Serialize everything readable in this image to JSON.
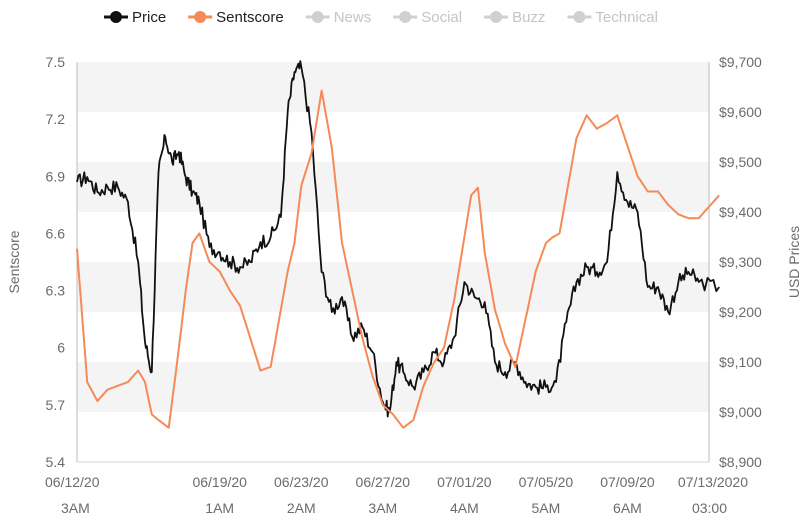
{
  "legend": [
    {
      "label": "Price",
      "color": "#111111",
      "active": true
    },
    {
      "label": "Sentscore",
      "color": "#f58a57",
      "active": true
    },
    {
      "label": "News",
      "color": "#d0d0d0",
      "active": false
    },
    {
      "label": "Social",
      "color": "#d0d0d0",
      "active": false
    },
    {
      "label": "Buzz",
      "color": "#d0d0d0",
      "active": false
    },
    {
      "label": "Technical",
      "color": "#d0d0d0",
      "active": false
    }
  ],
  "chart_data": {
    "type": "line",
    "grid": "alternating horizontal bands",
    "legend_position": "top",
    "left_axis": {
      "label": "Sentscore",
      "range": [
        5.4,
        7.5
      ],
      "ticks": [
        "7.5",
        "7.2",
        "6.9",
        "6.6",
        "6.3",
        "6",
        "5.7",
        "5.4"
      ]
    },
    "right_axis": {
      "label": "USD Prices",
      "range": [
        8900,
        9700
      ],
      "ticks": [
        "$9,700",
        "$9,600",
        "$9,500",
        "$9,400",
        "$9,300",
        "$9,200",
        "$9,100",
        "$9,000",
        "$8,900"
      ]
    },
    "x_axis": {
      "range": [
        "06/12/20",
        "07/13/20"
      ],
      "ticks": [
        {
          "date": "06/12/20",
          "time": "3AM"
        },
        {
          "date": "06/19/20",
          "time": "1AM"
        },
        {
          "date": "06/23/20",
          "time": "2AM"
        },
        {
          "date": "06/27/20",
          "time": "3AM"
        },
        {
          "date": "07/01/20",
          "time": "4AM"
        },
        {
          "date": "07/05/20",
          "time": "5AM"
        },
        {
          "date": "07/09/20",
          "time": "6AM"
        },
        {
          "date": "07/13/2020",
          "time": "03:00"
        }
      ]
    },
    "series": [
      {
        "name": "Price",
        "axis": "right",
        "color": "#111111",
        "x": [
          "06/12/20",
          "06/12/20",
          "06/13/20",
          "06/13/20",
          "06/14/20",
          "06/14/20",
          "06/15/20",
          "06/15/20",
          "06/15/20",
          "06/16/20",
          "06/16/20",
          "06/16/20",
          "06/17/20",
          "06/17/20",
          "06/17/20",
          "06/18/20",
          "06/18/20",
          "06/19/20",
          "06/19/20",
          "06/20/20",
          "06/20/20",
          "06/21/20",
          "06/21/20",
          "06/22/20",
          "06/22/20",
          "06/22/20",
          "06/23/20",
          "06/23/20",
          "06/24/20",
          "06/24/20",
          "06/25/20",
          "06/25/20",
          "06/26/20",
          "06/26/20",
          "06/27/20",
          "06/27/20",
          "06/27/20",
          "06/28/20",
          "06/28/20",
          "06/29/20",
          "06/29/20",
          "06/30/20",
          "06/30/20",
          "07/01/20",
          "07/01/20",
          "07/02/20",
          "07/02/20",
          "07/03/20",
          "07/03/20",
          "07/04/20",
          "07/04/20",
          "07/05/20",
          "07/05/20",
          "07/06/20",
          "07/06/20",
          "07/07/20",
          "07/07/20",
          "07/08/20",
          "07/08/20",
          "07/09/20",
          "07/09/20",
          "07/10/20",
          "07/10/20",
          "07/11/20",
          "07/11/20",
          "07/12/20",
          "07/12/20",
          "07/13/20"
        ],
        "y": [
          9460,
          9470,
          9440,
          9450,
          9450,
          9420,
          9300,
          9140,
          9080,
          9480,
          9550,
          9500,
          9520,
          9470,
          9440,
          9420,
          9330,
          9320,
          9300,
          9290,
          9300,
          9340,
          9350,
          9390,
          9600,
          9680,
          9690,
          9560,
          9280,
          9200,
          9230,
          9150,
          9170,
          9120,
          9020,
          9000,
          9100,
          9080,
          9050,
          9080,
          9120,
          9100,
          9150,
          9260,
          9230,
          9220,
          9100,
          9080,
          9100,
          9060,
          9050,
          9050,
          9060,
          9180,
          9260,
          9290,
          9280,
          9300,
          9480,
          9420,
          9400,
          9250,
          9250,
          9200,
          9260,
          9280,
          9260,
          9250
        ]
      },
      {
        "name": "Sentscore",
        "axis": "left",
        "color": "#f58a57",
        "x": [
          "06/12/20",
          "06/12/20",
          "06/13/20",
          "06/13/20",
          "06/14/20",
          "06/14/20",
          "06/15/20",
          "06/15/20",
          "06/15/20",
          "06/16/20",
          "06/16/20",
          "06/17/20",
          "06/17/20",
          "06/17/20",
          "06/18/20",
          "06/18/20",
          "06/19/20",
          "06/19/20",
          "06/20/20",
          "06/20/20",
          "06/21/20",
          "06/21/20",
          "06/22/20",
          "06/22/20",
          "06/22/20",
          "06/23/20",
          "06/23/20",
          "06/24/20",
          "06/24/20",
          "06/25/20",
          "06/25/20",
          "06/26/20",
          "06/26/20",
          "06/27/20",
          "06/27/20",
          "06/28/20",
          "06/28/20",
          "06/29/20",
          "06/29/20",
          "06/30/20",
          "06/30/20",
          "07/01/20",
          "07/01/20",
          "07/01/20",
          "07/02/20",
          "07/02/20",
          "07/03/20",
          "07/03/20",
          "07/04/20",
          "07/04/20",
          "07/05/20",
          "07/05/20",
          "07/05/20",
          "07/06/20",
          "07/06/20",
          "07/07/20",
          "07/07/20",
          "07/08/20",
          "07/08/20",
          "07/09/20",
          "07/09/20",
          "07/10/20",
          "07/10/20",
          "07/11/20",
          "07/11/20",
          "07/12/20",
          "07/12/20",
          "07/13/20"
        ],
        "y": [
          6.52,
          5.82,
          5.72,
          5.78,
          5.8,
          5.82,
          5.88,
          5.82,
          5.65,
          5.62,
          5.58,
          6.0,
          6.3,
          6.55,
          6.6,
          6.45,
          6.4,
          6.3,
          6.22,
          6.05,
          5.88,
          5.9,
          6.2,
          6.4,
          6.55,
          6.85,
          7.02,
          7.35,
          7.05,
          6.55,
          6.3,
          6.05,
          5.85,
          5.7,
          5.65,
          5.58,
          5.62,
          5.8,
          5.92,
          6.0,
          6.25,
          6.58,
          6.8,
          6.84,
          6.5,
          6.2,
          6.02,
          5.9,
          6.15,
          6.4,
          6.55,
          6.58,
          6.6,
          6.8,
          7.1,
          7.22,
          7.15,
          7.18,
          7.22,
          7.06,
          6.9,
          6.82,
          6.82,
          6.75,
          6.7,
          6.68,
          6.68,
          6.8
        ]
      }
    ]
  }
}
